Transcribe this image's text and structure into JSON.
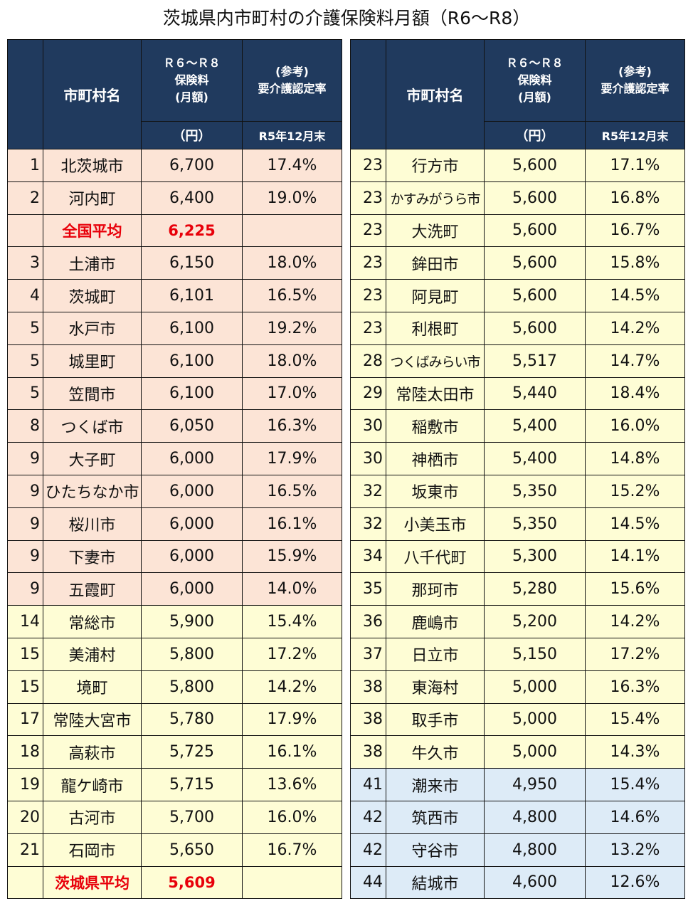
{
  "title": "茨城県内市町村の介護保険料月額（R6〜R8）",
  "headers": {
    "name": "市町村名",
    "fee_l1": "Ｒ６〜Ｒ８",
    "fee_l2": "保険料",
    "fee_l3": "(月額)",
    "rate_l1": "(参考)",
    "rate_l2": "要介護認定率",
    "unit": "（円）",
    "rate_date": "R5年12月末"
  },
  "left_rows": [
    {
      "rank": "1",
      "name": "北茨城市",
      "fee": "6,700",
      "rate": "17.4%",
      "band": "pink"
    },
    {
      "rank": "2",
      "name": "河内町",
      "fee": "6,400",
      "rate": "19.0%",
      "band": "pink"
    },
    {
      "rank": "",
      "name": "全国平均",
      "fee": "6,225",
      "rate": "",
      "band": "pink",
      "avg": true
    },
    {
      "rank": "3",
      "name": "土浦市",
      "fee": "6,150",
      "rate": "18.0%",
      "band": "pink"
    },
    {
      "rank": "4",
      "name": "茨城町",
      "fee": "6,101",
      "rate": "16.5%",
      "band": "pink"
    },
    {
      "rank": "5",
      "name": "水戸市",
      "fee": "6,100",
      "rate": "19.2%",
      "band": "pink"
    },
    {
      "rank": "5",
      "name": "城里町",
      "fee": "6,100",
      "rate": "18.0%",
      "band": "pink"
    },
    {
      "rank": "5",
      "name": "笠間市",
      "fee": "6,100",
      "rate": "17.0%",
      "band": "pink"
    },
    {
      "rank": "8",
      "name": "つくば市",
      "fee": "6,050",
      "rate": "16.3%",
      "band": "pink"
    },
    {
      "rank": "9",
      "name": "大子町",
      "fee": "6,000",
      "rate": "17.9%",
      "band": "pink"
    },
    {
      "rank": "9",
      "name": "ひたちなか市",
      "fee": "6,000",
      "rate": "16.5%",
      "band": "pink"
    },
    {
      "rank": "9",
      "name": "桜川市",
      "fee": "6,000",
      "rate": "16.1%",
      "band": "pink"
    },
    {
      "rank": "9",
      "name": "下妻市",
      "fee": "6,000",
      "rate": "15.9%",
      "band": "pink"
    },
    {
      "rank": "9",
      "name": "五霞町",
      "fee": "6,000",
      "rate": "14.0%",
      "band": "pink"
    },
    {
      "rank": "14",
      "name": "常総市",
      "fee": "5,900",
      "rate": "15.4%",
      "band": "yellow"
    },
    {
      "rank": "15",
      "name": "美浦村",
      "fee": "5,800",
      "rate": "17.2%",
      "band": "yellow"
    },
    {
      "rank": "15",
      "name": "境町",
      "fee": "5,800",
      "rate": "14.2%",
      "band": "yellow"
    },
    {
      "rank": "17",
      "name": "常陸大宮市",
      "fee": "5,780",
      "rate": "17.9%",
      "band": "yellow"
    },
    {
      "rank": "18",
      "name": "高萩市",
      "fee": "5,725",
      "rate": "16.1%",
      "band": "yellow"
    },
    {
      "rank": "19",
      "name": "龍ケ崎市",
      "fee": "5,715",
      "rate": "13.6%",
      "band": "yellow"
    },
    {
      "rank": "20",
      "name": "古河市",
      "fee": "5,700",
      "rate": "16.0%",
      "band": "yellow"
    },
    {
      "rank": "21",
      "name": "石岡市",
      "fee": "5,650",
      "rate": "16.7%",
      "band": "yellow"
    },
    {
      "rank": "",
      "name": "茨城県平均",
      "fee": "5,609",
      "rate": "",
      "band": "yellow",
      "avg": true
    }
  ],
  "right_rows": [
    {
      "rank": "23",
      "name": "行方市",
      "fee": "5,600",
      "rate": "17.1%",
      "band": "yellow"
    },
    {
      "rank": "23",
      "name": "かすみがうら市",
      "fee": "5,600",
      "rate": "16.8%",
      "band": "yellow",
      "small": true
    },
    {
      "rank": "23",
      "name": "大洗町",
      "fee": "5,600",
      "rate": "16.7%",
      "band": "yellow"
    },
    {
      "rank": "23",
      "name": "鉾田市",
      "fee": "5,600",
      "rate": "15.8%",
      "band": "yellow"
    },
    {
      "rank": "23",
      "name": "阿見町",
      "fee": "5,600",
      "rate": "14.5%",
      "band": "yellow"
    },
    {
      "rank": "23",
      "name": "利根町",
      "fee": "5,600",
      "rate": "14.2%",
      "band": "yellow"
    },
    {
      "rank": "28",
      "name": "つくばみらい市",
      "fee": "5,517",
      "rate": "14.7%",
      "band": "yellow",
      "small": true
    },
    {
      "rank": "29",
      "name": "常陸太田市",
      "fee": "5,440",
      "rate": "18.4%",
      "band": "yellow"
    },
    {
      "rank": "30",
      "name": "稲敷市",
      "fee": "5,400",
      "rate": "16.0%",
      "band": "yellow"
    },
    {
      "rank": "30",
      "name": "神栖市",
      "fee": "5,400",
      "rate": "14.8%",
      "band": "yellow"
    },
    {
      "rank": "32",
      "name": "坂東市",
      "fee": "5,350",
      "rate": "15.2%",
      "band": "yellow"
    },
    {
      "rank": "32",
      "name": "小美玉市",
      "fee": "5,350",
      "rate": "14.5%",
      "band": "yellow"
    },
    {
      "rank": "34",
      "name": "八千代町",
      "fee": "5,300",
      "rate": "14.1%",
      "band": "yellow"
    },
    {
      "rank": "35",
      "name": "那珂市",
      "fee": "5,280",
      "rate": "15.6%",
      "band": "yellow"
    },
    {
      "rank": "36",
      "name": "鹿嶋市",
      "fee": "5,200",
      "rate": "14.2%",
      "band": "yellow"
    },
    {
      "rank": "37",
      "name": "日立市",
      "fee": "5,150",
      "rate": "17.2%",
      "band": "yellow"
    },
    {
      "rank": "38",
      "name": "東海村",
      "fee": "5,000",
      "rate": "16.3%",
      "band": "yellow"
    },
    {
      "rank": "38",
      "name": "取手市",
      "fee": "5,000",
      "rate": "15.4%",
      "band": "yellow"
    },
    {
      "rank": "38",
      "name": "牛久市",
      "fee": "5,000",
      "rate": "14.3%",
      "band": "yellow"
    },
    {
      "rank": "41",
      "name": "潮来市",
      "fee": "4,950",
      "rate": "15.4%",
      "band": "blue"
    },
    {
      "rank": "42",
      "name": "筑西市",
      "fee": "4,800",
      "rate": "14.6%",
      "band": "blue"
    },
    {
      "rank": "42",
      "name": "守谷市",
      "fee": "4,800",
      "rate": "13.2%",
      "band": "blue"
    },
    {
      "rank": "44",
      "name": "結城市",
      "fee": "4,600",
      "rate": "12.6%",
      "band": "blue"
    }
  ],
  "colors": {
    "header_bg": "#203a5e",
    "pink": "#fce4d6",
    "yellow": "#fefdd5",
    "blue": "#ddebf7",
    "avg_text": "#e8000a"
  }
}
